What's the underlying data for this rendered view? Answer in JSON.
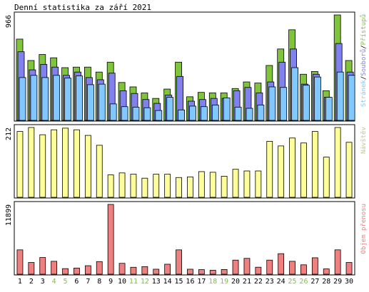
{
  "title": "Denní statistika za září 2021",
  "chart_data": {
    "type": "bar",
    "title": "Denní statistika za září 2021",
    "categories": [
      "1",
      "2",
      "3",
      "4",
      "5",
      "6",
      "7",
      "8",
      "9",
      "10",
      "11",
      "12",
      "13",
      "14",
      "15",
      "16",
      "17",
      "18",
      "19",
      "20",
      "21",
      "22",
      "23",
      "24",
      "25",
      "26",
      "27",
      "28",
      "29",
      "30"
    ],
    "weekend_days": [
      "4",
      "5",
      "11",
      "12",
      "18",
      "19",
      "25",
      "26"
    ],
    "colors": {
      "pristupu": "#7fc43a",
      "souboru": "#8080ee",
      "stranek": "#80c8ff",
      "navstev": "#ffff99",
      "objem": "#f08080",
      "weekend_label": "#80c040",
      "weekday_label": "#000000"
    },
    "panels": [
      {
        "name": "hits",
        "ymax_label": "966",
        "legend": [
          "Stránek",
          "/",
          "Souborů",
          "/",
          "Přístupů"
        ],
        "series": [
          {
            "name": "Přístupů",
            "values": [
              740,
              545,
              600,
              570,
              480,
              485,
              485,
              440,
              530,
              345,
              305,
              250,
              200,
              285,
              530,
              215,
              255,
              250,
              250,
              290,
              350,
              340,
              500,
              650,
              825,
              420,
              445,
              270,
              960,
              545
            ]
          },
          {
            "name": "Souborů",
            "values": [
              625,
              460,
              510,
              485,
              410,
              440,
              390,
              370,
              430,
              270,
              245,
              190,
              155,
              230,
              400,
              175,
              190,
              200,
              200,
              270,
              300,
              250,
              350,
              530,
              650,
              330,
              420,
              210,
              700,
              440
            ]
          },
          {
            "name": "Stránek",
            "values": [
              390,
              410,
              390,
              410,
              385,
              405,
              325,
              330,
              150,
              125,
              120,
              115,
              90,
              210,
              95,
              130,
              125,
              140,
              205,
              120,
              110,
              140,
              305,
              300,
              480,
              320,
              395,
              210,
              440,
              410
            ]
          }
        ]
      },
      {
        "name": "visits",
        "ymax_label": "212",
        "legend": [
          "Návštěv"
        ],
        "series": [
          {
            "name": "Návštěv",
            "values": [
              200,
              212,
              190,
              205,
              210,
              205,
              188,
              158,
              68,
              74,
              70,
              58,
              70,
              70,
              60,
              62,
              78,
              76,
              64,
              85,
              80,
              80,
              170,
              156,
              180,
              165,
              200,
              122,
              212,
              167
            ]
          }
        ]
      },
      {
        "name": "volume",
        "ymax_label": "11899",
        "legend": [
          "Objem přenosu"
        ],
        "series": [
          {
            "name": "Objem přenosu",
            "values": [
              4150,
              2000,
              2850,
              2200,
              950,
              1050,
              1450,
              2150,
              11899,
              1850,
              1180,
              1290,
              850,
              1700,
              4150,
              850,
              780,
              670,
              800,
              2400,
              2700,
              1190,
              2400,
              3500,
              2200,
              1600,
              2800,
              900,
              4150,
              2000
            ]
          }
        ]
      }
    ]
  }
}
